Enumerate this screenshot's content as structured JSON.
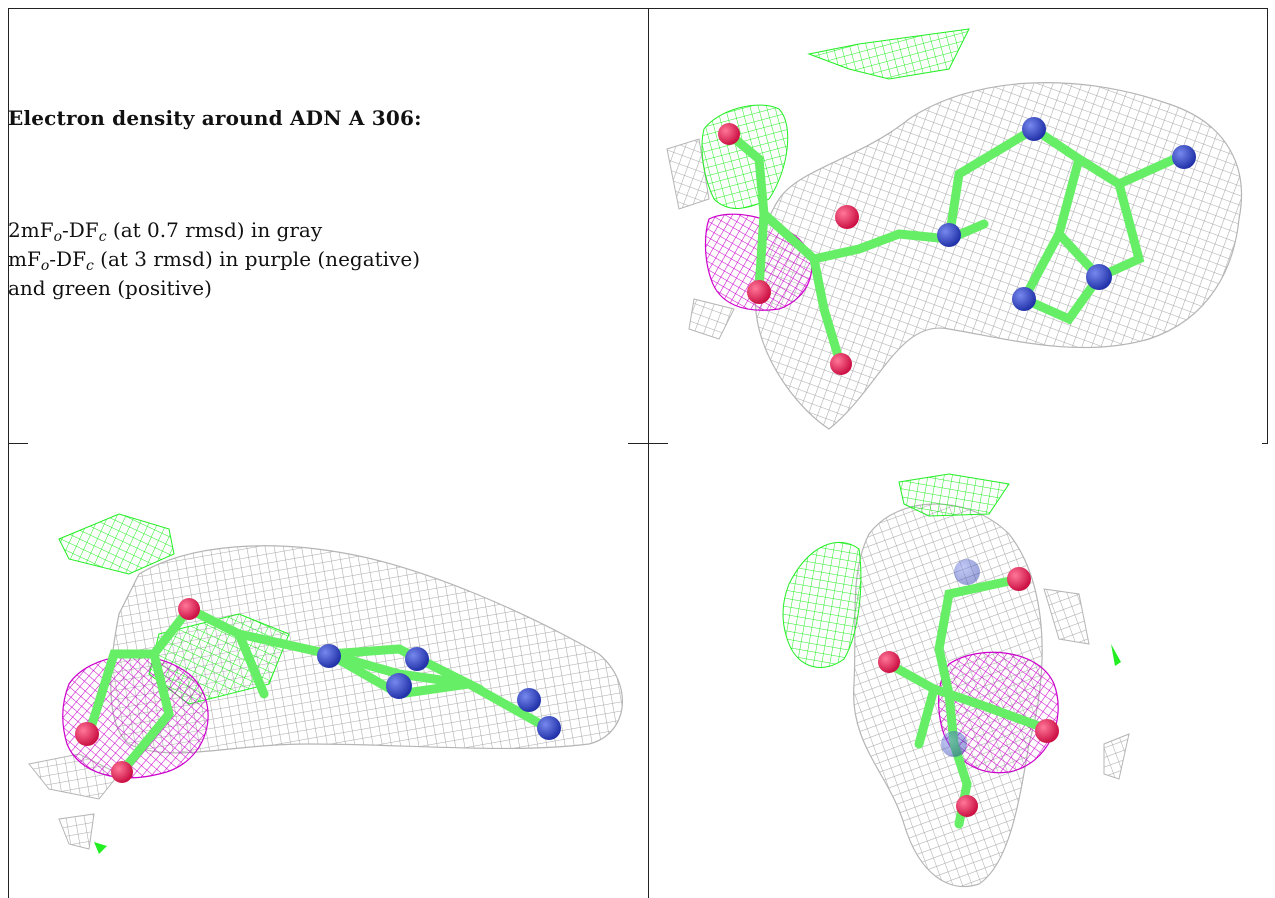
{
  "caption": {
    "title": "Electron density around ADN A 306:",
    "lines": [
      {
        "prefix": "2mF",
        "sub1": "o",
        "mid": "-DF",
        "sub2": "c",
        "suffix": " (at 0.7 rmsd) in gray"
      },
      {
        "prefix": "mF",
        "sub1": "o",
        "mid": "-DF",
        "sub2": "c",
        "suffix": " (at 3 rmsd) in purple (negative)"
      },
      {
        "text": "and green (positive)"
      }
    ]
  },
  "colors": {
    "mesh_gray": "#a9a9a9",
    "mesh_green": "#22ee22",
    "mesh_purple": "#cc00cc",
    "bond_green": "#66ee66",
    "oxygen": "#ee2255",
    "nitrogen": "#3344cc",
    "border": "#222222"
  },
  "panels": [
    {
      "name": "view-top-right",
      "description_icon": "molecule-view"
    },
    {
      "name": "view-bottom-left",
      "description_icon": "molecule-view"
    },
    {
      "name": "view-bottom-right",
      "description_icon": "molecule-view"
    }
  ]
}
